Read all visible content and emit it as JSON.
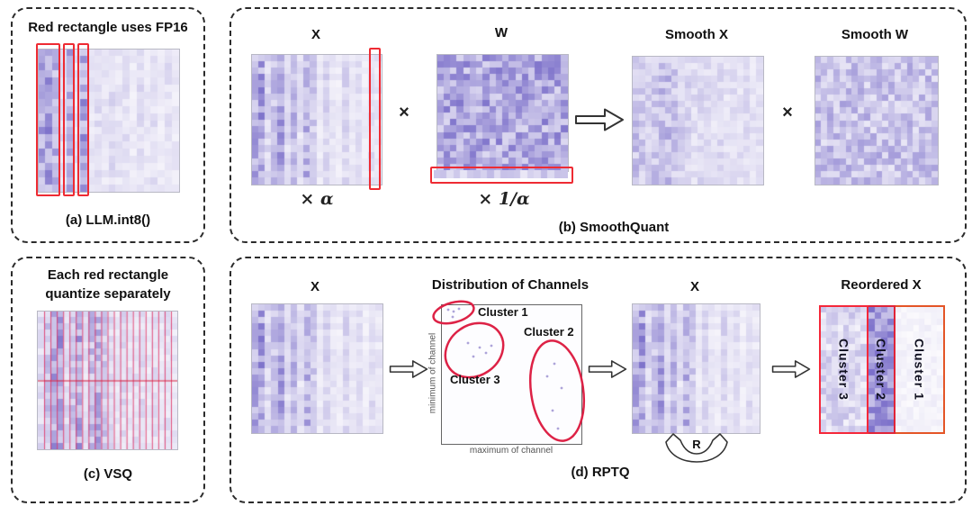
{
  "figure": {
    "panel_a": {
      "title": "Red rectangle uses FP16",
      "caption": "(a) LLM.int8()"
    },
    "panel_b": {
      "x_label": "X",
      "w_label": "W",
      "times": "×",
      "alpha": "× α",
      "inv_alpha": "× 1/α",
      "smooth_x_label": "Smooth X",
      "smooth_w_label": "Smooth W",
      "caption": "(b) SmoothQuant"
    },
    "panel_c": {
      "title_line1": "Each red rectangle",
      "title_line2": "quantize separately",
      "caption": "(c) VSQ"
    },
    "panel_d": {
      "x_label": "X",
      "dist_title": "Distribution of Channels",
      "cluster1_label": "Cluster 1",
      "cluster2_label": "Cluster 2",
      "cluster3_label": "Cluster 3",
      "y_axis_label": "minimum of channel",
      "x_axis_label": "maximum of channel",
      "x2_label": "X",
      "reorder_label": "R",
      "reordered_title": "Reordered X",
      "col_cluster3": "Cluster 3",
      "col_cluster2": "Cluster 2",
      "col_cluster1": "Cluster 1",
      "caption": "(d) RPTQ"
    }
  },
  "colors": {
    "highlight_red": "#ee2b33",
    "ellipse_red": "#dd2246",
    "vline_pink": "#e0386a",
    "hline_red": "#d81f3d",
    "heat_dark": "#7063c5",
    "heat_light": "#fbfafd",
    "cluster1_border": "#e45527"
  },
  "heatmaps": {
    "a": {
      "cols": 20,
      "rows": 20,
      "seed": 11,
      "profile": "cols",
      "weights": [
        0.82,
        0.9,
        0.74,
        0.3,
        0.82,
        0.28,
        0.85,
        0.2,
        0.28,
        0.22,
        0.32,
        0.22,
        0.26,
        0.16,
        0.3,
        0.2,
        0.26,
        0.16,
        0.26,
        0.18
      ]
    },
    "c": {
      "cols": 22,
      "rows": 22,
      "seed": 23,
      "profile": "cols",
      "weights": [
        0.3,
        0.5,
        0.85,
        0.88,
        0.32,
        0.5,
        0.8,
        0.25,
        0.6,
        0.72,
        0.48,
        0.3,
        0.2,
        0.3,
        0.22,
        0.25,
        0.3,
        0.2,
        0.26,
        0.2,
        0.24,
        0.2
      ],
      "vlines": true,
      "hline": true
    },
    "bx": {
      "cols": 20,
      "rows": 20,
      "seed": 7,
      "profile": "cols",
      "weights": [
        0.75,
        0.9,
        0.35,
        0.55,
        0.85,
        0.3,
        0.65,
        0.25,
        0.7,
        0.45,
        0.18,
        0.4,
        0.22,
        0.15,
        0.35,
        0.18,
        0.28,
        0.15,
        0.3,
        0.2
      ]
    },
    "bw": {
      "cols": 20,
      "rows": 18,
      "seed": 31,
      "profile": "uniform",
      "lo": 0.22,
      "hi": 0.88
    },
    "bwstrip": {
      "cols": 20,
      "rows": 1,
      "seed": 5,
      "profile": "uniform",
      "lo": 0.12,
      "hi": 0.45
    },
    "bsx": {
      "cols": 20,
      "rows": 20,
      "seed": 13,
      "profile": "cols",
      "weights": [
        0.55,
        0.5,
        0.45,
        0.52,
        0.6,
        0.62,
        0.5,
        0.42,
        0.38,
        0.3,
        0.34,
        0.3,
        0.26,
        0.32,
        0.24,
        0.3,
        0.26,
        0.3,
        0.24,
        0.28
      ]
    },
    "bsw": {
      "cols": 20,
      "rows": 20,
      "seed": 17,
      "profile": "uniform",
      "lo": 0.12,
      "hi": 0.62
    },
    "r3": {
      "cols": 8,
      "rows": 20,
      "seed": 41,
      "profile": "uniform",
      "lo": 0.04,
      "hi": 0.42
    },
    "r2": {
      "cols": 4,
      "rows": 20,
      "seed": 43,
      "profile": "uniform",
      "lo": 0.35,
      "hi": 0.92
    },
    "r1": {
      "cols": 8,
      "rows": 20,
      "seed": 47,
      "profile": "uniform",
      "lo": 0.0,
      "hi": 0.1
    }
  }
}
